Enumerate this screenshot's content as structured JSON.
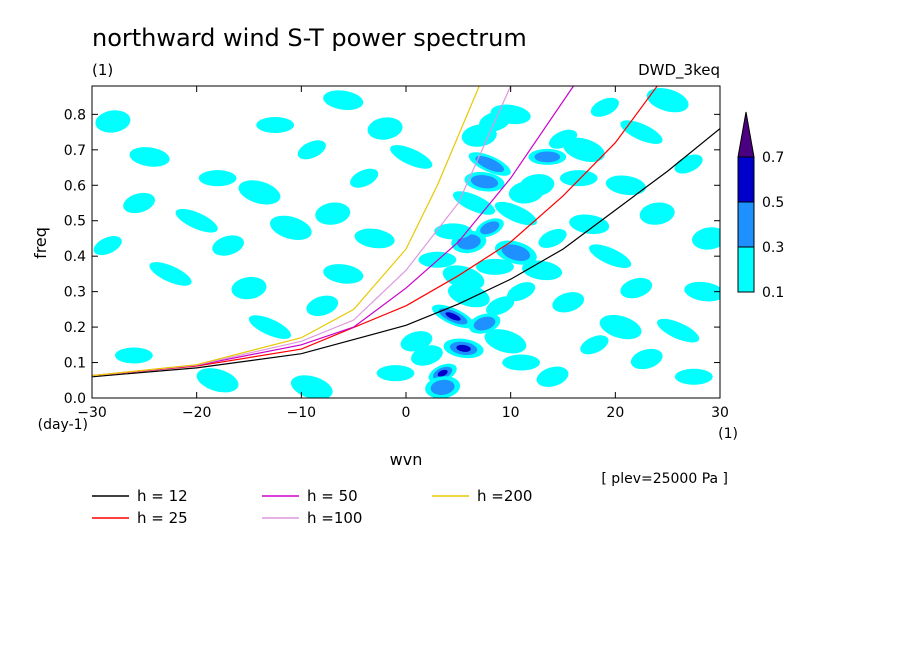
{
  "chart_data": {
    "type": "contour",
    "title": "northward wind S-T power spectrum",
    "units_label": "(1)",
    "dataset_label": "DWD_3keq",
    "xlabel": "wvn",
    "ylabel": "freq",
    "x_unit": "(1)",
    "y_unit": "(day-1)",
    "level_note": "[ plev=25000 Pa ]",
    "xlim": [
      -30,
      30
    ],
    "ylim": [
      0,
      0.88
    ],
    "x_ticks": [
      -30,
      -20,
      -10,
      0,
      10,
      20,
      30
    ],
    "x_tick_labels": [
      "−30",
      "−20",
      "−10",
      "0",
      "10",
      "20",
      "30"
    ],
    "y_ticks": [
      0,
      0.1,
      0.2,
      0.3,
      0.4,
      0.5,
      0.6,
      0.7,
      0.8
    ],
    "y_tick_labels": [
      "0.0",
      "0.1",
      "0.2",
      "0.3",
      "0.4",
      "0.5",
      "0.6",
      "0.7",
      "0.8"
    ],
    "colorbar": {
      "levels": [
        "0.1",
        "0.3",
        "0.5",
        "0.7"
      ],
      "colors": [
        "#00ffff",
        "#1e90ff",
        "#0000cd",
        "#4b0082"
      ]
    },
    "dispersion_curves": [
      {
        "name": "h = 12",
        "color": "#000000",
        "x": [
          -30,
          -20,
          -10,
          0,
          5,
          10,
          15,
          20,
          25,
          30
        ],
        "y": [
          0.06,
          0.085,
          0.125,
          0.205,
          0.265,
          0.335,
          0.42,
          0.53,
          0.64,
          0.76
        ]
      },
      {
        "name": "h = 25",
        "color": "#ff0000",
        "x": [
          -30,
          -20,
          -10,
          0,
          5,
          10,
          15,
          20,
          24
        ],
        "y": [
          0.063,
          0.09,
          0.138,
          0.26,
          0.345,
          0.44,
          0.57,
          0.72,
          0.88
        ]
      },
      {
        "name": "h = 50",
        "color": "#cc00cc",
        "x": [
          -30,
          -20,
          -10,
          -5,
          0,
          5,
          10,
          16
        ],
        "y": [
          0.063,
          0.092,
          0.15,
          0.2,
          0.31,
          0.44,
          0.62,
          0.88
        ]
      },
      {
        "name": "h =100",
        "color": "#dd99dd",
        "x": [
          -30,
          -20,
          -10,
          -5,
          0,
          5,
          10
        ],
        "y": [
          0.063,
          0.093,
          0.16,
          0.22,
          0.36,
          0.55,
          0.88
        ]
      },
      {
        "name": "h =200",
        "color": "#e8c800",
        "x": [
          -30,
          -20,
          -10,
          -5,
          0,
          3,
          7
        ],
        "y": [
          0.063,
          0.094,
          0.17,
          0.25,
          0.42,
          0.6,
          0.88
        ]
      }
    ],
    "contour_blobs": [
      {
        "x": 3.5,
        "y": 0.07,
        "level": 3
      },
      {
        "x": 3.5,
        "y": 0.03,
        "level": 2
      },
      {
        "x": 5.5,
        "y": 0.14,
        "level": 3
      },
      {
        "x": 4.5,
        "y": 0.23,
        "level": 3
      },
      {
        "x": 7.5,
        "y": 0.21,
        "level": 2
      },
      {
        "x": 8.5,
        "y": 0.37,
        "level": 1
      },
      {
        "x": 10.5,
        "y": 0.41,
        "level": 2
      },
      {
        "x": 8,
        "y": 0.48,
        "level": 2
      },
      {
        "x": 6,
        "y": 0.44,
        "level": 2
      },
      {
        "x": 7.5,
        "y": 0.61,
        "level": 2
      },
      {
        "x": 8,
        "y": 0.66,
        "level": 2
      },
      {
        "x": 8.5,
        "y": 0.78,
        "level": 1
      },
      {
        "x": 13.5,
        "y": 0.68,
        "level": 2
      },
      {
        "x": 17,
        "y": 0.7,
        "level": 1
      },
      {
        "x": 15,
        "y": 0.73,
        "level": 1
      },
      {
        "x": 12.5,
        "y": 0.6,
        "level": 1
      },
      {
        "x": 17.5,
        "y": 0.49,
        "level": 1
      },
      {
        "x": 10.5,
        "y": 0.52,
        "level": 1
      },
      {
        "x": 15.5,
        "y": 0.27,
        "level": 1
      },
      {
        "x": 3,
        "y": 0.39,
        "level": 1
      },
      {
        "x": 5.5,
        "y": 0.34,
        "level": 1
      },
      {
        "x": 11,
        "y": 0.3,
        "level": 1
      },
      {
        "x": 7,
        "y": 0.74,
        "level": 1
      },
      {
        "x": 10,
        "y": 0.8,
        "level": 1
      },
      {
        "x": 6.5,
        "y": 0.55,
        "level": 1
      },
      {
        "x": 2,
        "y": 0.12,
        "level": 1
      },
      {
        "x": 4.5,
        "y": 0.47,
        "level": 1
      },
      {
        "x": 9.5,
        "y": 0.16,
        "level": 1
      },
      {
        "x": 14,
        "y": 0.45,
        "level": 1
      },
      {
        "x": 11.5,
        "y": 0.58,
        "level": 1
      },
      {
        "x": 13,
        "y": 0.36,
        "level": 1
      },
      {
        "x": 19.5,
        "y": 0.4,
        "level": 1
      },
      {
        "x": 22,
        "y": 0.31,
        "level": 1
      },
      {
        "x": 16.5,
        "y": 0.62,
        "level": 1
      },
      {
        "x": 6,
        "y": 0.29,
        "level": 1
      },
      {
        "x": 9,
        "y": 0.26,
        "level": 1
      },
      {
        "x": -28,
        "y": 0.78,
        "level": 1
      },
      {
        "x": -24.5,
        "y": 0.68,
        "level": 1
      },
      {
        "x": -20,
        "y": 0.5,
        "level": 1
      },
      {
        "x": -17,
        "y": 0.43,
        "level": 1
      },
      {
        "x": -12.5,
        "y": 0.77,
        "level": 1
      },
      {
        "x": -11,
        "y": 0.48,
        "level": 1
      },
      {
        "x": -9,
        "y": 0.7,
        "level": 1
      },
      {
        "x": -7,
        "y": 0.52,
        "level": 1
      },
      {
        "x": -6,
        "y": 0.35,
        "level": 1
      },
      {
        "x": -22.5,
        "y": 0.35,
        "level": 1
      },
      {
        "x": -25.5,
        "y": 0.55,
        "level": 1
      },
      {
        "x": -18,
        "y": 0.62,
        "level": 1
      },
      {
        "x": -14,
        "y": 0.58,
        "level": 1
      },
      {
        "x": -4,
        "y": 0.62,
        "level": 1
      },
      {
        "x": -2,
        "y": 0.76,
        "level": 1
      },
      {
        "x": -3,
        "y": 0.45,
        "level": 1
      },
      {
        "x": -13,
        "y": 0.2,
        "level": 1
      },
      {
        "x": -8,
        "y": 0.26,
        "level": 1
      },
      {
        "x": -26,
        "y": 0.12,
        "level": 1
      },
      {
        "x": -18,
        "y": 0.05,
        "level": 1
      },
      {
        "x": -28.5,
        "y": 0.43,
        "level": 1
      },
      {
        "x": -15,
        "y": 0.31,
        "level": 1
      },
      {
        "x": -6,
        "y": 0.84,
        "level": 1
      },
      {
        "x": 0.5,
        "y": 0.68,
        "level": 1
      },
      {
        "x": 1,
        "y": 0.16,
        "level": 1
      },
      {
        "x": -1,
        "y": 0.07,
        "level": 1
      },
      {
        "x": 25,
        "y": 0.84,
        "level": 1
      },
      {
        "x": 27,
        "y": 0.66,
        "level": 1
      },
      {
        "x": 24,
        "y": 0.52,
        "level": 1
      },
      {
        "x": 28.5,
        "y": 0.3,
        "level": 1
      },
      {
        "x": 26,
        "y": 0.19,
        "level": 1
      },
      {
        "x": 23,
        "y": 0.11,
        "level": 1
      },
      {
        "x": 27.5,
        "y": 0.06,
        "level": 1
      },
      {
        "x": 20.5,
        "y": 0.2,
        "level": 1
      },
      {
        "x": 18,
        "y": 0.15,
        "level": 1
      },
      {
        "x": 29,
        "y": 0.45,
        "level": 1
      },
      {
        "x": 21,
        "y": 0.6,
        "level": 1
      },
      {
        "x": 22.5,
        "y": 0.75,
        "level": 1
      },
      {
        "x": 14,
        "y": 0.06,
        "level": 1
      },
      {
        "x": 11,
        "y": 0.1,
        "level": 1
      },
      {
        "x": -9,
        "y": 0.03,
        "level": 1
      },
      {
        "x": 19,
        "y": 0.82,
        "level": 1
      }
    ]
  }
}
